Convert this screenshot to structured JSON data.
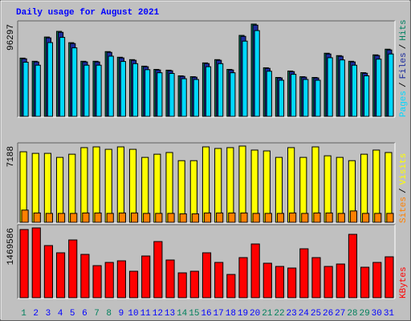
{
  "chart_data": [
    {
      "type": "bar",
      "title": "Daily usage for August 2021",
      "legend_separator": "/",
      "ylim": [
        0,
        96297
      ],
      "yticks": [
        96297
      ],
      "series": [
        {
          "name": "Hits",
          "color": "#008060",
          "values": [
            60800,
            57500,
            82800,
            88700,
            76900,
            57500,
            57500,
            67600,
            61700,
            59200,
            52400,
            49000,
            48200,
            42300,
            41400,
            55800,
            59200,
            49000,
            84500,
            96297,
            50700,
            40600,
            47300,
            41400,
            40600,
            65900,
            63400,
            57500,
            45600,
            64200,
            70100
          ]
        },
        {
          "name": "Files",
          "color": "#1c2c9c",
          "values": [
            60100,
            56800,
            81900,
            87700,
            76000,
            56800,
            56800,
            66800,
            61000,
            58500,
            51800,
            48400,
            47600,
            41800,
            40900,
            55100,
            58500,
            48400,
            83500,
            95200,
            50100,
            40100,
            46700,
            40900,
            40100,
            65100,
            62700,
            56800,
            45000,
            63500,
            69300
          ]
        },
        {
          "name": "Pages",
          "color": "#00d8ff",
          "values": [
            56500,
            53400,
            77000,
            82400,
            71500,
            53400,
            53400,
            62800,
            57300,
            55000,
            48700,
            45500,
            44800,
            39300,
            38500,
            51800,
            55000,
            45500,
            78500,
            89500,
            47100,
            37700,
            43900,
            38500,
            37700,
            61200,
            58900,
            53400,
            42300,
            59700,
            65100
          ]
        }
      ]
    },
    {
      "type": "bar",
      "legend_separator": "/",
      "ylim": [
        0,
        7188
      ],
      "yticks": [
        7188
      ],
      "series": [
        {
          "name": "Visits",
          "color": "#ffff00",
          "values": [
            6650,
            6500,
            6500,
            6120,
            6420,
            7040,
            7110,
            6880,
            7110,
            6880,
            6120,
            6420,
            6580,
            5810,
            5810,
            7110,
            6960,
            7040,
            7188,
            6810,
            6730,
            6120,
            7040,
            6120,
            7110,
            6270,
            6120,
            5810,
            6420,
            6810,
            6580
          ]
        },
        {
          "name": "Sites",
          "color": "#ff8000",
          "values": [
            1150,
            880,
            840,
            840,
            840,
            880,
            880,
            840,
            880,
            880,
            840,
            840,
            840,
            800,
            800,
            880,
            880,
            880,
            880,
            840,
            840,
            840,
            880,
            840,
            880,
            880,
            840,
            1070,
            840,
            840,
            840
          ]
        }
      ]
    },
    {
      "type": "bar",
      "ylim": [
        0,
        1469586
      ],
      "yticks": [
        1469586
      ],
      "categories": [
        "1",
        "2",
        "3",
        "4",
        "5",
        "6",
        "7",
        "8",
        "9",
        "10",
        "11",
        "12",
        "13",
        "14",
        "15",
        "16",
        "17",
        "18",
        "19",
        "20",
        "21",
        "22",
        "23",
        "24",
        "25",
        "26",
        "27",
        "28",
        "29",
        "30",
        "31"
      ],
      "category_colors": [
        "#00805c",
        "#0000ff",
        "#0000ff",
        "#0000ff",
        "#0000ff",
        "#0000ff",
        "#00805c",
        "#00805c",
        "#0000ff",
        "#0000ff",
        "#0000ff",
        "#0000ff",
        "#0000ff",
        "#00805c",
        "#00805c",
        "#0000ff",
        "#0000ff",
        "#0000ff",
        "#0000ff",
        "#0000ff",
        "#00805c",
        "#00805c",
        "#0000ff",
        "#0000ff",
        "#0000ff",
        "#0000ff",
        "#0000ff",
        "#00805c",
        "#00805c",
        "#0000ff",
        "#0000ff"
      ],
      "series": [
        {
          "name": "KBytes",
          "color": "#ff0000",
          "values": [
            1435650,
            1469586,
            1097850,
            945840,
            1216080,
            912060,
            675600,
            743160,
            776940,
            557370,
            878280,
            1182300,
            793830,
            523590,
            557370,
            945840,
            743160,
            489810,
            844500,
            1131630,
            726270,
            658710,
            624930,
            1030290,
            844500,
            658710,
            709380,
            1334310,
            641820,
            743160,
            861390
          ]
        }
      ]
    }
  ]
}
